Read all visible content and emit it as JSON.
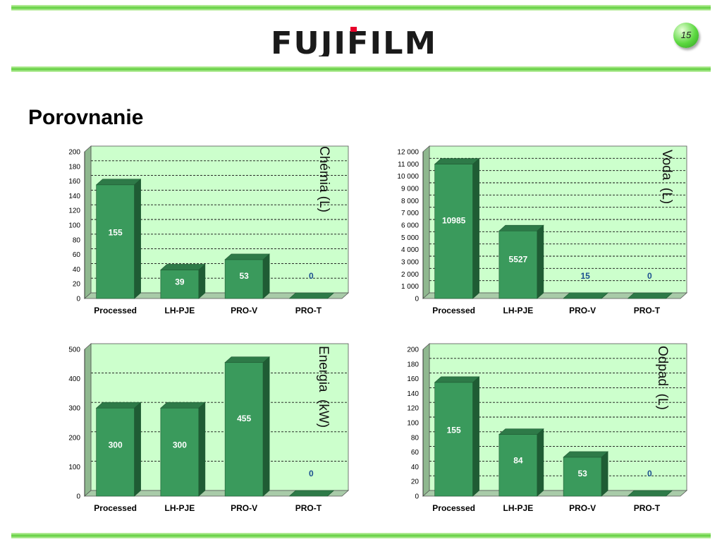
{
  "header": {
    "logo_text": "FUJIFILM",
    "page_number": "15"
  },
  "title": "Porovnanie",
  "colors": {
    "bar": "#3a9a5c",
    "bar_top": "#2e7a48",
    "bar_side": "#1f5c34",
    "plot_bg": "#ccffcc",
    "wall_left": "#8fb88f",
    "floor": "#a8cba8",
    "band": "#5fcf3c"
  },
  "chart_data": [
    {
      "type": "bar",
      "side_label": "Chémia (L)",
      "categories": [
        "Processed",
        "LH-PJE",
        "PRO-V",
        "PRO-T"
      ],
      "values": [
        155,
        39,
        53,
        0
      ],
      "value_labels": [
        "155",
        "39",
        "53",
        "0"
      ],
      "ylim": [
        0,
        200
      ],
      "yticks": [
        0,
        20,
        40,
        60,
        80,
        100,
        120,
        140,
        160,
        180,
        200
      ],
      "ytick_labels": [
        "0",
        "20",
        "40",
        "60",
        "80",
        "100",
        "120",
        "140",
        "160",
        "180",
        "200"
      ],
      "grid": true
    },
    {
      "type": "bar",
      "side_label": "Voda  (L)",
      "categories": [
        "Processed",
        "LH-PJE",
        "PRO-V",
        "PRO-T"
      ],
      "values": [
        10985,
        5527,
        15,
        0
      ],
      "value_labels": [
        "10985",
        "5527",
        "15",
        "0"
      ],
      "ylim": [
        0,
        12000
      ],
      "yticks": [
        0,
        1000,
        2000,
        3000,
        4000,
        5000,
        6000,
        7000,
        8000,
        9000,
        10000,
        11000,
        12000
      ],
      "ytick_labels": [
        "0",
        "1 000",
        "2 000",
        "3 000",
        "4 000",
        "5 000",
        "6 000",
        "7 000",
        "8 000",
        "9 000",
        "10 000",
        "11 000",
        "12 000"
      ],
      "grid": true
    },
    {
      "type": "bar",
      "side_label": "Energia  (kW)",
      "categories": [
        "Processed",
        "LH-PJE",
        "PRO-V",
        "PRO-T"
      ],
      "values": [
        300,
        300,
        455,
        0
      ],
      "value_labels": [
        "300",
        "300",
        "455",
        "0"
      ],
      "ylim": [
        0,
        500
      ],
      "yticks": [
        0,
        100,
        200,
        300,
        400,
        500
      ],
      "ytick_labels": [
        "0",
        "100",
        "200",
        "300",
        "400",
        "500"
      ],
      "grid": true
    },
    {
      "type": "bar",
      "side_label": "Odpad  (L)",
      "categories": [
        "Processed",
        "LH-PJE",
        "PRO-V",
        "PRO-T"
      ],
      "values": [
        155,
        84,
        53,
        0
      ],
      "value_labels": [
        "155",
        "84",
        "53",
        "0"
      ],
      "ylim": [
        0,
        200
      ],
      "yticks": [
        0,
        20,
        40,
        60,
        80,
        100,
        120,
        140,
        160,
        180,
        200
      ],
      "ytick_labels": [
        "0",
        "20",
        "40",
        "60",
        "80",
        "100",
        "120",
        "140",
        "160",
        "180",
        "200"
      ],
      "grid": true
    }
  ]
}
